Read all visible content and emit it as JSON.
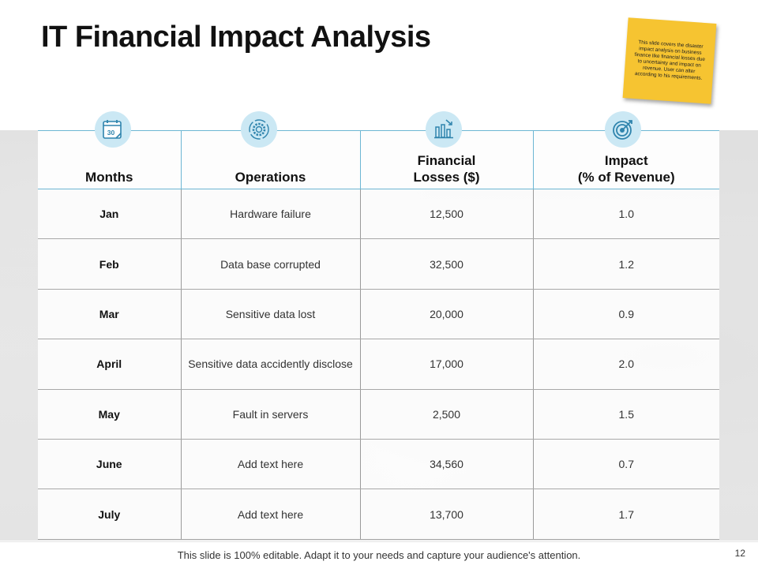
{
  "title": "IT Financial Impact Analysis",
  "sticky_note": "This slide covers the disaster impact analysis on business finance like financial losses due to uncertainty and impact on revenue. User can alter according to his requirements.",
  "table": {
    "headers": [
      {
        "label": "Months",
        "icon": "calendar-icon"
      },
      {
        "label": "Operations",
        "icon": "gear-cycle-icon"
      },
      {
        "label": "Financial\nLosses ($)",
        "icon": "bar-chart-decline-icon"
      },
      {
        "label": "Impact\n(% of Revenue)",
        "icon": "target-icon"
      }
    ],
    "rows": [
      {
        "month": "Jan",
        "operation": "Hardware failure",
        "loss": "12,500",
        "impact": "1.0"
      },
      {
        "month": "Feb",
        "operation": "Data base corrupted",
        "loss": "32,500",
        "impact": "1.2"
      },
      {
        "month": "Mar",
        "operation": "Sensitive data lost",
        "loss": "20,000",
        "impact": "0.9"
      },
      {
        "month": "April",
        "operation": "Sensitive data accidently disclose",
        "loss": "17,000",
        "impact": "2.0"
      },
      {
        "month": "May",
        "operation": "Fault in servers",
        "loss": "2,500",
        "impact": "1.5"
      },
      {
        "month": "June",
        "operation": "Add text here",
        "loss": "34,560",
        "impact": "0.7"
      },
      {
        "month": "July",
        "operation": "Add text here",
        "loss": "13,700",
        "impact": "1.7"
      }
    ]
  },
  "calendar_day": "30",
  "footer": "This slide is 100% editable. Adapt it to your needs and capture your audience's attention.",
  "page_number": "12",
  "colors": {
    "accent": "#6db6d3",
    "icon_bg": "#cbe8f4",
    "icon_stroke": "#2f84ad",
    "note": "#f6c431"
  }
}
